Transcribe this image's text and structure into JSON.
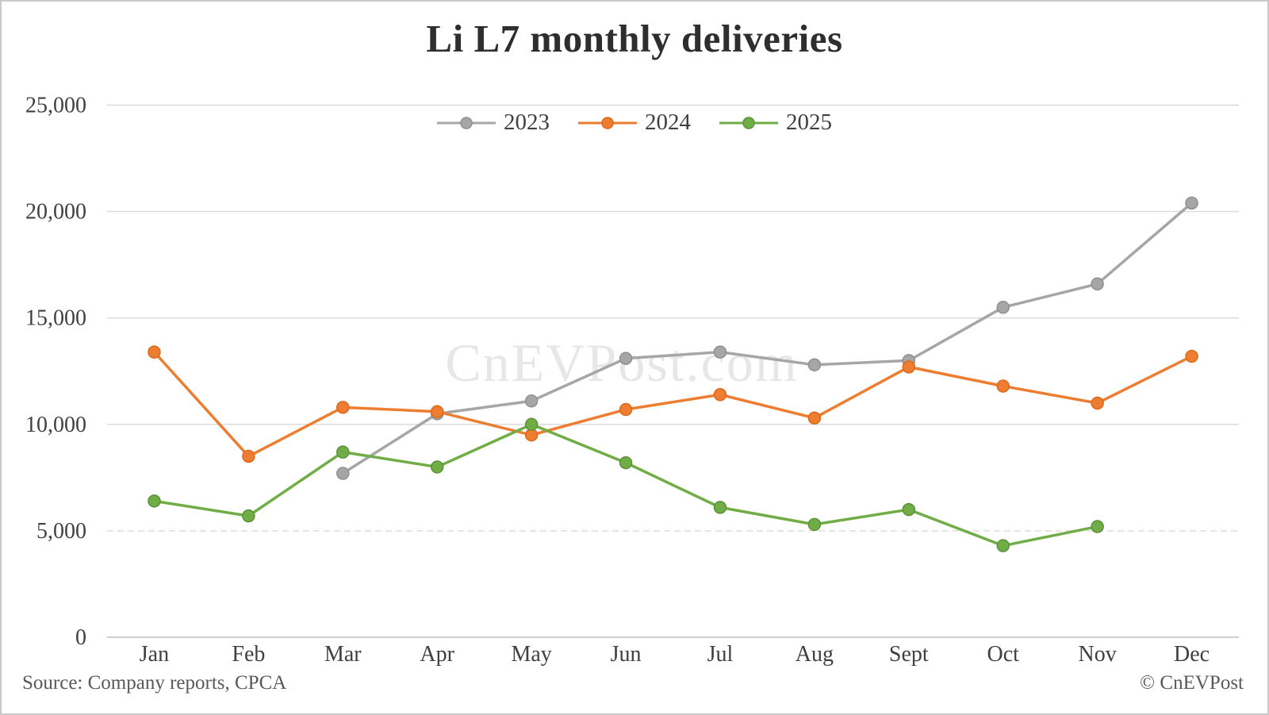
{
  "watermark": "CnEVPost.com",
  "footer": {
    "source": "Source: Company reports, CPCA",
    "copyright": "© CnEVPost"
  },
  "chart_data": {
    "type": "line",
    "title": "Li L7 monthly deliveries",
    "categories": [
      "Jan",
      "Feb",
      "Mar",
      "Apr",
      "May",
      "Jun",
      "Jul",
      "Aug",
      "Sept",
      "Oct",
      "Nov",
      "Dec"
    ],
    "y_ticks": [
      0,
      5000,
      10000,
      15000,
      20000,
      25000
    ],
    "y_tick_labels": [
      "0",
      "5,000",
      "10,000",
      "15,000",
      "20,000",
      "25,000"
    ],
    "ylim": [
      0,
      25000
    ],
    "grid": true,
    "legend_position": "top-center",
    "series": [
      {
        "name": "2023",
        "color": "#a6a6a6",
        "marker_stroke": "#8f8f8f",
        "values": [
          null,
          null,
          7700,
          10500,
          11100,
          13100,
          13400,
          12800,
          13000,
          15500,
          16600,
          20400
        ]
      },
      {
        "name": "2024",
        "color": "#ed7d31",
        "marker_stroke": "#dd6a1c",
        "values": [
          13400,
          8500,
          10800,
          10600,
          9500,
          10700,
          11400,
          10300,
          12700,
          11800,
          11000,
          13200
        ]
      },
      {
        "name": "2025",
        "color": "#70ad47",
        "marker_stroke": "#5d9138",
        "values": [
          6400,
          5700,
          8700,
          8000,
          10000,
          8200,
          6100,
          5300,
          6000,
          4300,
          5200,
          null
        ]
      }
    ]
  }
}
